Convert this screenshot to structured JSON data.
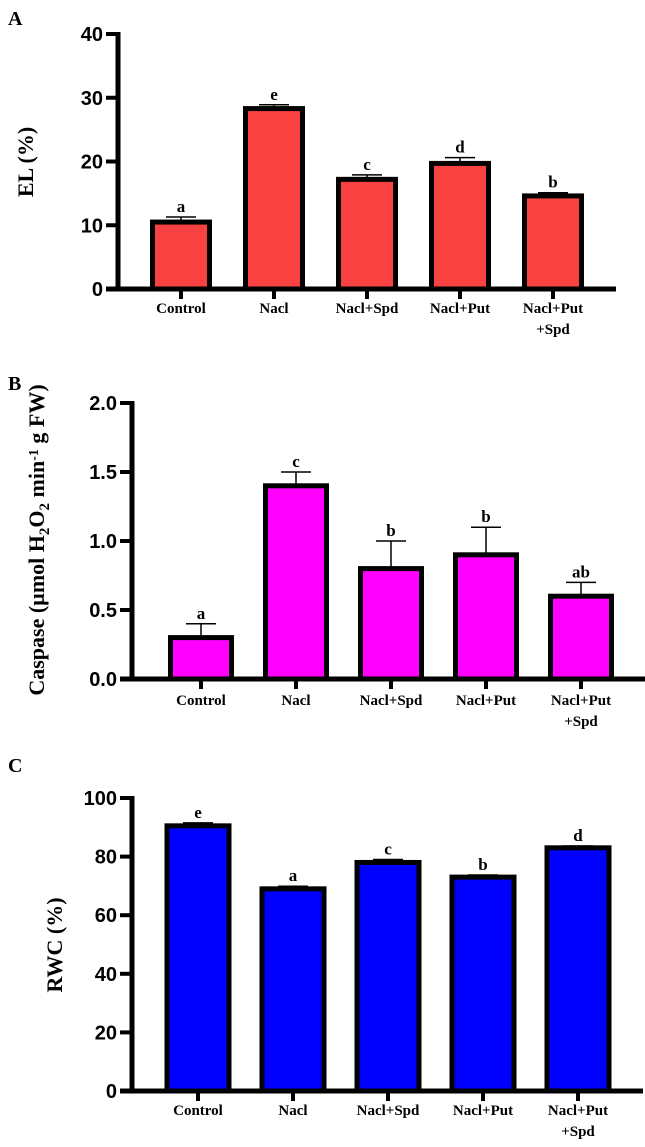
{
  "chart_data": [
    {
      "type": "bar",
      "panel_label": "A",
      "categories": [
        "Control",
        "Nacl",
        "Nacl+Spd",
        "Nacl+Put",
        "Nacl+Put\n+Spd"
      ],
      "values": [
        10.5,
        28.3,
        17.2,
        19.7,
        14.6
      ],
      "errors": [
        0.8,
        0.6,
        0.7,
        0.9,
        0.5
      ],
      "significance": [
        "a",
        "e",
        "c",
        "d",
        "b"
      ],
      "ylabel": "EL (%)",
      "ylabel_parts": [
        {
          "t": "EL (%)"
        }
      ],
      "xlabel": "",
      "ylim": [
        0,
        40
      ],
      "yticks": [
        0,
        10,
        20,
        30,
        40
      ],
      "tick_labels": [
        "0",
        "10",
        "20",
        "30",
        "40"
      ],
      "color": "#FA4141",
      "grid": false
    },
    {
      "type": "bar",
      "panel_label": "B",
      "categories": [
        "Control",
        "Nacl",
        "Nacl+Spd",
        "Nacl+Put",
        "Nacl+Put\n+Spd"
      ],
      "values": [
        0.3,
        1.4,
        0.8,
        0.9,
        0.6
      ],
      "errors": [
        0.1,
        0.1,
        0.2,
        0.2,
        0.1
      ],
      "significance": [
        "a",
        "c",
        "b",
        "b",
        "ab"
      ],
      "ylabel": "Caspase (µmol H2O2 min-1 g FW)",
      "ylabel_parts": [
        {
          "t": "Caspase (µmol  H"
        },
        {
          "t": "2",
          "sub": true
        },
        {
          "t": "O"
        },
        {
          "t": "2",
          "sub": true
        },
        {
          "t": " min"
        },
        {
          "t": "-1",
          "sup": true
        },
        {
          "t": " g  FW)"
        }
      ],
      "xlabel": "",
      "ylim": [
        0,
        2.0
      ],
      "yticks": [
        0,
        0.5,
        1.0,
        1.5,
        2.0
      ],
      "tick_labels": [
        "0.0",
        "0.5",
        "1.0",
        "1.5",
        "2.0"
      ],
      "color": "#FF00FF",
      "grid": false
    },
    {
      "type": "bar",
      "panel_label": "C",
      "categories": [
        "Control",
        "Nacl",
        "Nacl+Spd",
        "Nacl+Put",
        "Nacl+Put\n+Spd"
      ],
      "values": [
        90.5,
        69,
        78,
        73,
        83
      ],
      "errors": [
        1.0,
        0.9,
        1.0,
        0.7,
        0.6
      ],
      "significance": [
        "e",
        "a",
        "c",
        "b",
        "d"
      ],
      "ylabel": "RWC (%)",
      "ylabel_parts": [
        {
          "t": "RWC (%)"
        }
      ],
      "xlabel": "",
      "ylim": [
        0,
        100
      ],
      "yticks": [
        0,
        20,
        40,
        60,
        80,
        100
      ],
      "tick_labels": [
        "0",
        "20",
        "40",
        "60",
        "80",
        "100"
      ],
      "color": "#0000FF",
      "grid": false
    }
  ]
}
